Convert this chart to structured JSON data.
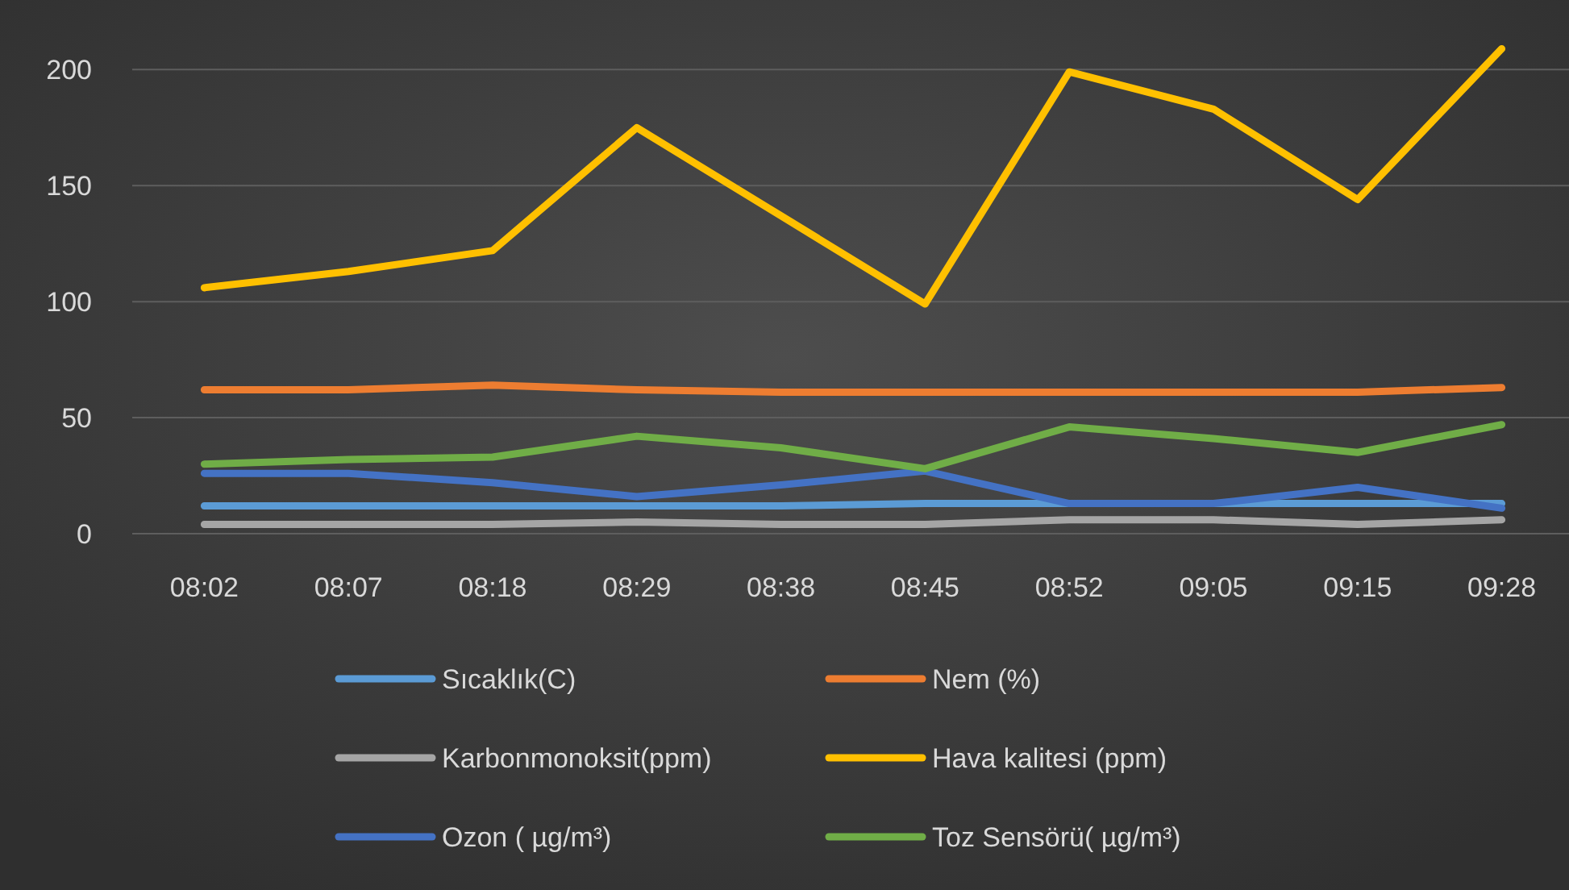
{
  "chart_data": {
    "type": "line",
    "categories": [
      "08:02",
      "08:07",
      "08:18",
      "08:29",
      "08:38",
      "08:45",
      "08:52",
      "09:05",
      "09:15",
      "09:28"
    ],
    "series": [
      {
        "name": "Sıcaklık(C)",
        "color": "#5b9bd5",
        "values": [
          12,
          12,
          12,
          12,
          12,
          13,
          13,
          13,
          13,
          13
        ]
      },
      {
        "name": "Nem (%)",
        "color": "#ed7d31",
        "values": [
          62,
          62,
          64,
          62,
          61,
          61,
          61,
          61,
          61,
          63
        ]
      },
      {
        "name": "Karbonmonoksit(ppm)",
        "color": "#a5a5a5",
        "values": [
          4,
          4,
          4,
          5,
          4,
          4,
          6,
          6,
          4,
          6
        ]
      },
      {
        "name": "Hava kalitesi (ppm)",
        "color": "#ffc000",
        "values": [
          106,
          113,
          122,
          175,
          137,
          99,
          199,
          183,
          144,
          209
        ]
      },
      {
        "name": "Ozon ( µg/m³)",
        "color": "#4472c4",
        "values": [
          26,
          26,
          22,
          16,
          21,
          27,
          13,
          13,
          20,
          11
        ]
      },
      {
        "name": "Toz Sensörü( µg/m³)",
        "color": "#70ad47",
        "values": [
          30,
          32,
          33,
          42,
          37,
          28,
          46,
          41,
          35,
          47
        ]
      }
    ],
    "ylim": [
      0,
      230
    ],
    "yticks": [
      0,
      50,
      100,
      150,
      200
    ],
    "grid": "y",
    "legend": "bottom"
  }
}
